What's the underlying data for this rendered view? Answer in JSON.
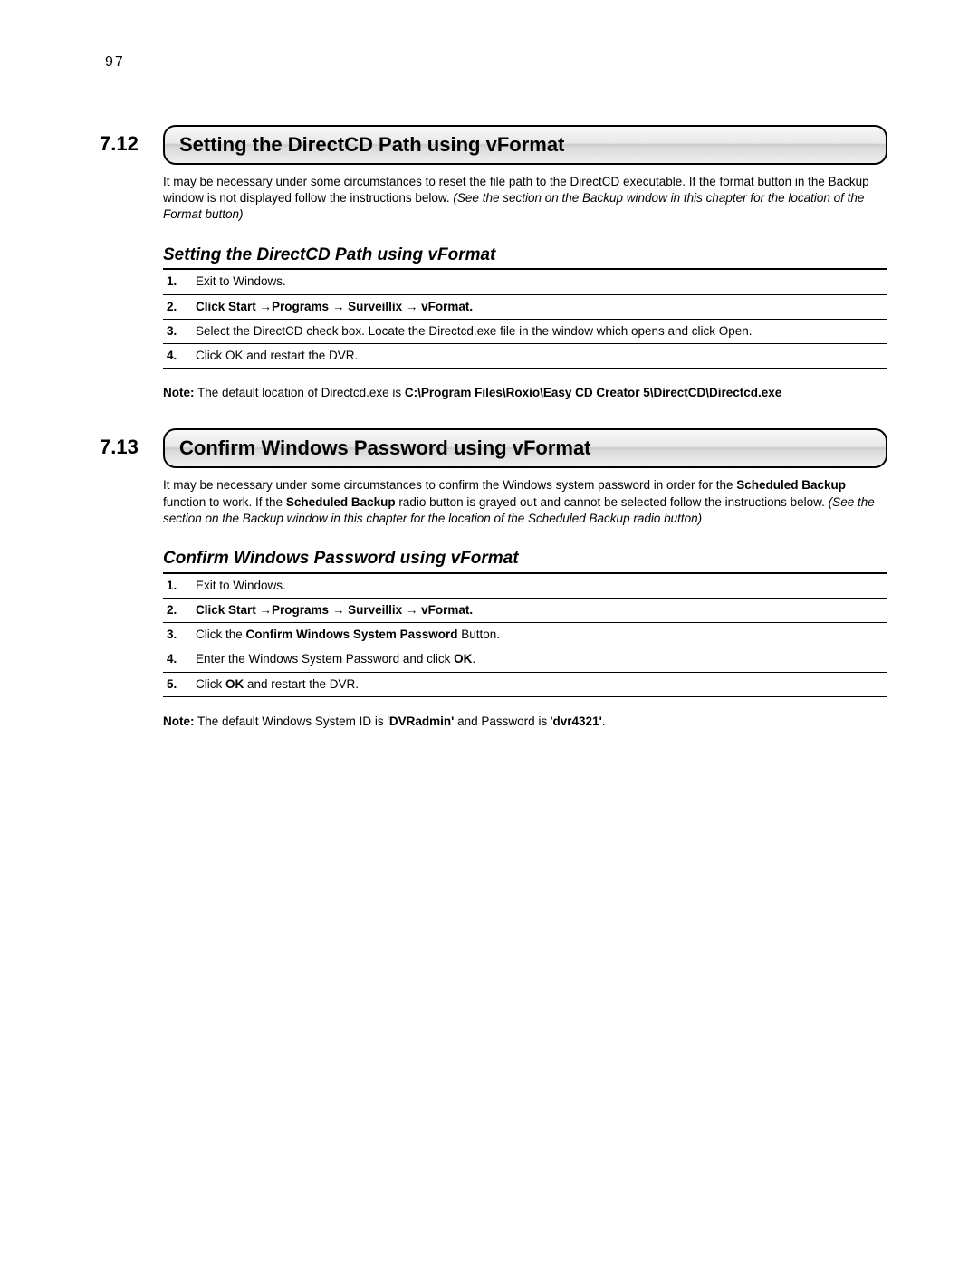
{
  "page_number": "97",
  "sections": [
    {
      "num": "7.12",
      "title": "Setting the DirectCD Path using vFormat",
      "intro_html": "It may be necessary under some circumstances to reset the file path to the DirectCD executable. If the format button in the Backup window is not displayed follow the instructions below. <i>(See the section on the Backup window in this chapter for the location of the Format button)</i>",
      "subtitle": "Setting the DirectCD Path using vFormat",
      "steps": [
        {
          "n": "1.",
          "html": "Exit to Windows.",
          "bold_row": false
        },
        {
          "n": "2.",
          "html": "Click <b>Start →Programs → Surveillix → vFormat.</b>",
          "bold_row": true
        },
        {
          "n": "3.",
          "html": "Select the DirectCD check box. Locate the Directcd.exe file in the window which opens and click Open.",
          "bold_row": false
        },
        {
          "n": "4.",
          "html": "Click OK and restart the DVR.",
          "bold_row": false
        }
      ],
      "note_html": "<b>Note:</b> The default location of Directcd.exe is  <b>C:\\Program Files\\Roxio\\Easy CD Creator 5\\DirectCD\\Directcd.exe</b>"
    },
    {
      "num": "7.13",
      "title": "Confirm Windows Password using vFormat",
      "intro_html": "It may be necessary under some circumstances to confirm the Windows system password in order for the <b>Scheduled Backup</b> function to work. If the <b>Scheduled Backup</b> radio button is grayed out and cannot be selected follow the instructions below. <i>(See the section on the Backup window in this chapter for the location of the Scheduled Backup radio button)</i>",
      "subtitle": "Confirm Windows Password using vFormat",
      "steps": [
        {
          "n": "1.",
          "html": "Exit to Windows.",
          "bold_row": false
        },
        {
          "n": "2.",
          "html": "Click <b>Start →Programs → Surveillix → vFormat.</b>",
          "bold_row": true
        },
        {
          "n": "3.",
          "html": "Click the <b>Confirm Windows System Password</b> Button.",
          "bold_row": false
        },
        {
          "n": "4.",
          "html": "Enter the Windows System Password and click <b>OK</b>.",
          "bold_row": false
        },
        {
          "n": "5.",
          "html": "Click <b>OK</b> and restart the DVR.",
          "bold_row": false
        }
      ],
      "note_html": "<b>Note:</b> The default Windows System ID is '<b>DVRadmin'</b> and Password is '<b>dvr4321'</b>."
    }
  ]
}
